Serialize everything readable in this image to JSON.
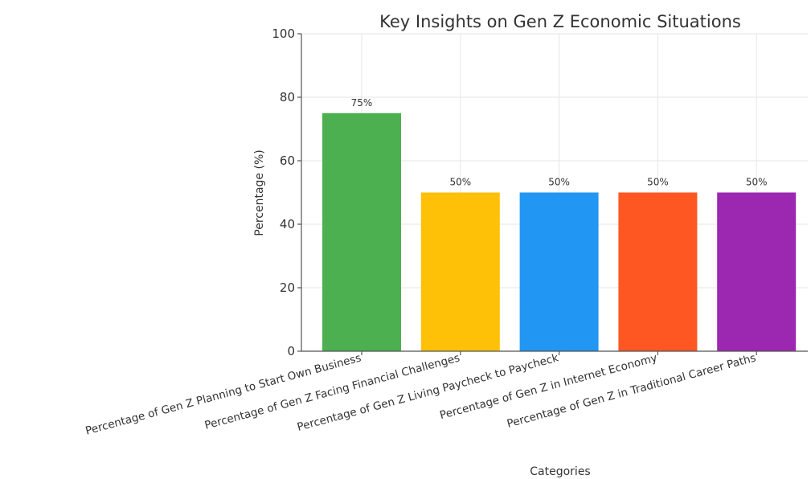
{
  "chart_data": {
    "type": "bar",
    "title": "Key Insights on Gen Z Economic Situations",
    "xlabel": "Categories",
    "ylabel": "Percentage (%)",
    "ylim": [
      0,
      100
    ],
    "yticks": [
      0,
      20,
      40,
      60,
      80,
      100
    ],
    "grid": true,
    "categories": [
      "Percentage of Gen Z Planning to Start Own Business",
      "Percentage of Gen Z Facing Financial Challenges",
      "Percentage of Gen Z Living Paycheck to Paycheck",
      "Percentage of Gen Z in Internet Economy",
      "Percentage of Gen Z in Traditional Career Paths"
    ],
    "values": [
      75,
      50,
      50,
      50,
      50
    ],
    "data_labels": [
      "75%",
      "50%",
      "50%",
      "50%",
      "50%"
    ],
    "colors": [
      "#4caf50",
      "#ffc107",
      "#2196f3",
      "#ff5722",
      "#9c27b0"
    ]
  }
}
